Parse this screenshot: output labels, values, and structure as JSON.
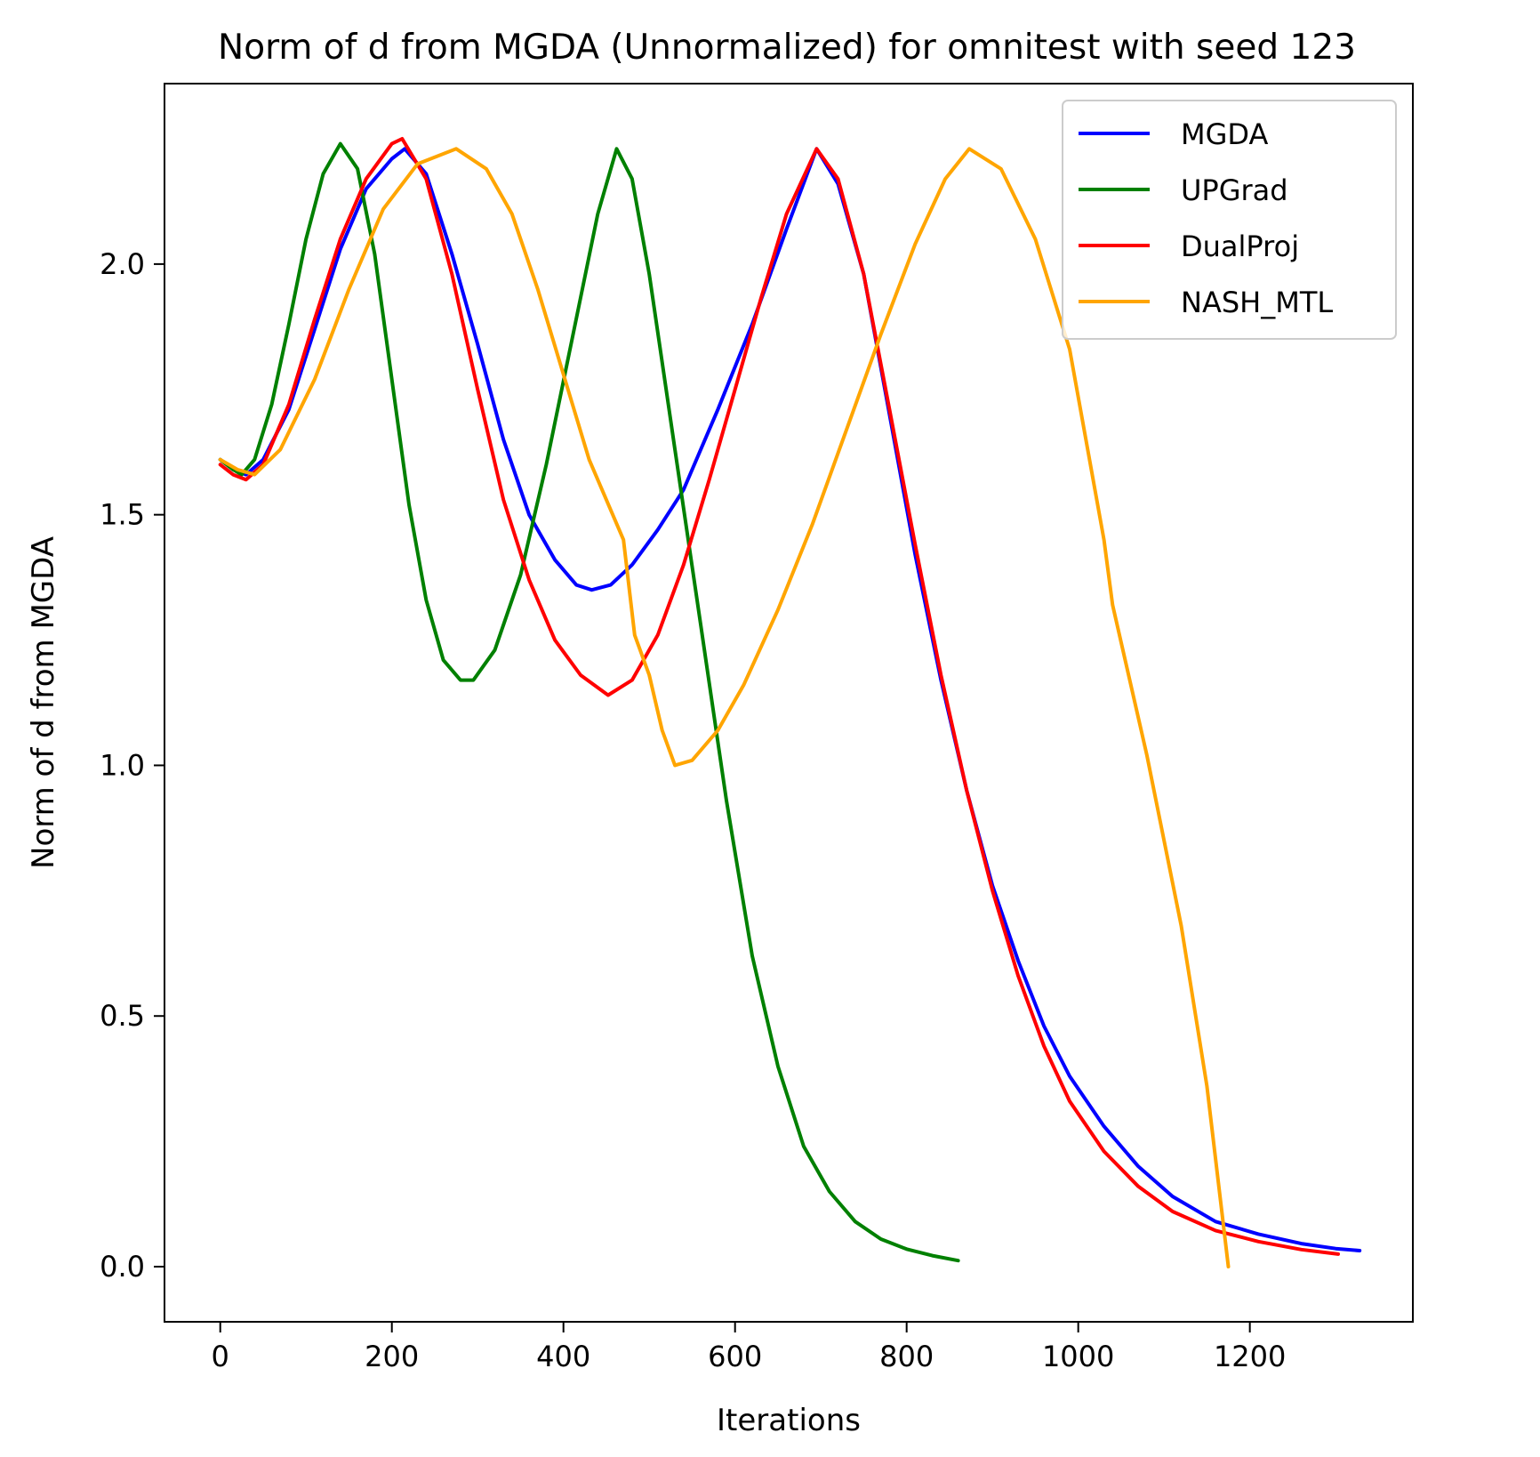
{
  "chart_data": {
    "type": "line",
    "title": "Norm of d from MGDA (Unnormalized) for omnitest with seed 123",
    "xlabel": "Iterations",
    "ylabel": "Norm of d from MGDA",
    "xlim": [
      -65,
      1390
    ],
    "ylim": [
      -0.11,
      2.36
    ],
    "xticks": [
      0,
      200,
      400,
      600,
      800,
      1000,
      1200
    ],
    "yticks": [
      0.0,
      0.5,
      1.0,
      1.5,
      2.0
    ],
    "xtick_labels": [
      "0",
      "200",
      "400",
      "600",
      "800",
      "1000",
      "1200"
    ],
    "ytick_labels": [
      "0.0",
      "0.5",
      "1.0",
      "1.5",
      "2.0"
    ],
    "grid": false,
    "legend_position": "top-right",
    "series": [
      {
        "name": "MGDA",
        "color": "#0000ff",
        "points": [
          [
            0,
            1.61
          ],
          [
            15,
            1.59
          ],
          [
            30,
            1.58
          ],
          [
            50,
            1.61
          ],
          [
            80,
            1.71
          ],
          [
            110,
            1.87
          ],
          [
            140,
            2.03
          ],
          [
            170,
            2.15
          ],
          [
            200,
            2.21
          ],
          [
            215,
            2.23
          ],
          [
            240,
            2.18
          ],
          [
            270,
            2.02
          ],
          [
            300,
            1.84
          ],
          [
            330,
            1.65
          ],
          [
            360,
            1.5
          ],
          [
            390,
            1.41
          ],
          [
            415,
            1.36
          ],
          [
            433,
            1.35
          ],
          [
            455,
            1.36
          ],
          [
            480,
            1.4
          ],
          [
            510,
            1.47
          ],
          [
            540,
            1.55
          ],
          [
            580,
            1.71
          ],
          [
            620,
            1.88
          ],
          [
            660,
            2.07
          ],
          [
            695,
            2.23
          ],
          [
            720,
            2.16
          ],
          [
            750,
            1.98
          ],
          [
            780,
            1.7
          ],
          [
            810,
            1.42
          ],
          [
            840,
            1.17
          ],
          [
            870,
            0.95
          ],
          [
            900,
            0.76
          ],
          [
            930,
            0.61
          ],
          [
            960,
            0.48
          ],
          [
            990,
            0.38
          ],
          [
            1030,
            0.28
          ],
          [
            1070,
            0.2
          ],
          [
            1110,
            0.14
          ],
          [
            1160,
            0.09
          ],
          [
            1210,
            0.065
          ],
          [
            1260,
            0.046
          ],
          [
            1300,
            0.036
          ],
          [
            1328,
            0.032
          ]
        ]
      },
      {
        "name": "UPGrad",
        "color": "#008000",
        "points": [
          [
            0,
            1.61
          ],
          [
            15,
            1.59
          ],
          [
            25,
            1.58
          ],
          [
            40,
            1.61
          ],
          [
            60,
            1.72
          ],
          [
            80,
            1.88
          ],
          [
            100,
            2.05
          ],
          [
            120,
            2.18
          ],
          [
            140,
            2.24
          ],
          [
            160,
            2.19
          ],
          [
            180,
            2.02
          ],
          [
            200,
            1.77
          ],
          [
            220,
            1.52
          ],
          [
            240,
            1.33
          ],
          [
            260,
            1.21
          ],
          [
            280,
            1.17
          ],
          [
            295,
            1.17
          ],
          [
            320,
            1.23
          ],
          [
            350,
            1.38
          ],
          [
            380,
            1.6
          ],
          [
            410,
            1.85
          ],
          [
            440,
            2.1
          ],
          [
            462,
            2.23
          ],
          [
            480,
            2.17
          ],
          [
            500,
            1.98
          ],
          [
            530,
            1.63
          ],
          [
            560,
            1.28
          ],
          [
            590,
            0.93
          ],
          [
            620,
            0.62
          ],
          [
            650,
            0.4
          ],
          [
            680,
            0.24
          ],
          [
            710,
            0.15
          ],
          [
            740,
            0.09
          ],
          [
            770,
            0.055
          ],
          [
            800,
            0.035
          ],
          [
            830,
            0.022
          ],
          [
            860,
            0.012
          ]
        ]
      },
      {
        "name": "DualProj",
        "color": "#ff0000",
        "points": [
          [
            0,
            1.6
          ],
          [
            15,
            1.58
          ],
          [
            30,
            1.57
          ],
          [
            50,
            1.6
          ],
          [
            80,
            1.72
          ],
          [
            110,
            1.89
          ],
          [
            140,
            2.05
          ],
          [
            170,
            2.17
          ],
          [
            200,
            2.24
          ],
          [
            212,
            2.25
          ],
          [
            240,
            2.17
          ],
          [
            270,
            1.98
          ],
          [
            300,
            1.75
          ],
          [
            330,
            1.53
          ],
          [
            360,
            1.37
          ],
          [
            390,
            1.25
          ],
          [
            420,
            1.18
          ],
          [
            452,
            1.14
          ],
          [
            480,
            1.17
          ],
          [
            510,
            1.26
          ],
          [
            540,
            1.4
          ],
          [
            570,
            1.57
          ],
          [
            600,
            1.75
          ],
          [
            630,
            1.93
          ],
          [
            660,
            2.1
          ],
          [
            695,
            2.23
          ],
          [
            720,
            2.17
          ],
          [
            750,
            1.98
          ],
          [
            780,
            1.71
          ],
          [
            810,
            1.44
          ],
          [
            840,
            1.18
          ],
          [
            870,
            0.95
          ],
          [
            900,
            0.75
          ],
          [
            930,
            0.58
          ],
          [
            960,
            0.44
          ],
          [
            990,
            0.33
          ],
          [
            1030,
            0.23
          ],
          [
            1070,
            0.16
          ],
          [
            1110,
            0.11
          ],
          [
            1160,
            0.072
          ],
          [
            1210,
            0.05
          ],
          [
            1260,
            0.034
          ],
          [
            1303,
            0.025
          ]
        ]
      },
      {
        "name": "NASH_MTL",
        "color": "#ffa500",
        "points": [
          [
            0,
            1.61
          ],
          [
            20,
            1.59
          ],
          [
            40,
            1.58
          ],
          [
            70,
            1.63
          ],
          [
            110,
            1.77
          ],
          [
            150,
            1.95
          ],
          [
            190,
            2.11
          ],
          [
            230,
            2.2
          ],
          [
            275,
            2.23
          ],
          [
            310,
            2.19
          ],
          [
            340,
            2.1
          ],
          [
            370,
            1.95
          ],
          [
            400,
            1.78
          ],
          [
            430,
            1.61
          ],
          [
            470,
            1.45
          ],
          [
            483,
            1.26
          ],
          [
            500,
            1.18
          ],
          [
            515,
            1.07
          ],
          [
            530,
            1.0
          ],
          [
            550,
            1.01
          ],
          [
            580,
            1.07
          ],
          [
            610,
            1.16
          ],
          [
            650,
            1.31
          ],
          [
            690,
            1.48
          ],
          [
            730,
            1.67
          ],
          [
            770,
            1.86
          ],
          [
            810,
            2.04
          ],
          [
            845,
            2.17
          ],
          [
            873,
            2.23
          ],
          [
            910,
            2.19
          ],
          [
            950,
            2.05
          ],
          [
            990,
            1.83
          ],
          [
            1030,
            1.45
          ],
          [
            1040,
            1.32
          ],
          [
            1080,
            1.02
          ],
          [
            1120,
            0.68
          ],
          [
            1150,
            0.36
          ],
          [
            1175,
            0.0
          ]
        ]
      }
    ]
  }
}
